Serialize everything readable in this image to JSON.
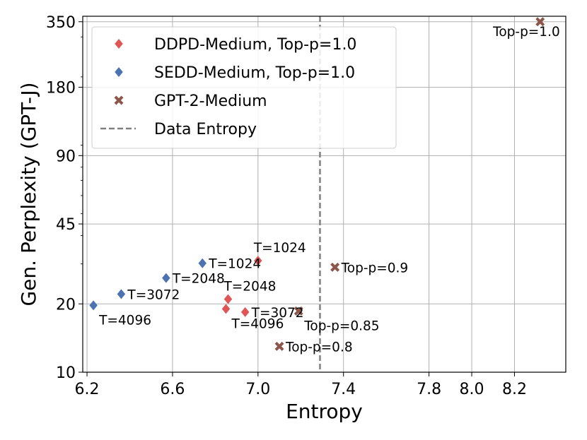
{
  "chart_data": {
    "type": "scatter",
    "xlabel": "Entropy",
    "ylabel": "Gen. Perplexity (GPT-J)",
    "xlim": [
      6.18,
      8.44
    ],
    "ylim": [
      10,
      370
    ],
    "y_scale": "log",
    "x_ticks": [
      {
        "value": 6.2,
        "label": "6.2"
      },
      {
        "value": 6.6,
        "label": "6.6"
      },
      {
        "value": 7.0,
        "label": "7.0"
      },
      {
        "value": 7.4,
        "label": "7.4"
      },
      {
        "value": 7.8,
        "label": "7.8"
      },
      {
        "value": 8.0,
        "label": "8.0"
      },
      {
        "value": 8.2,
        "label": "8.2"
      }
    ],
    "y_ticks": [
      {
        "value": 10,
        "label": "10"
      },
      {
        "value": 20,
        "label": "20"
      },
      {
        "value": 45,
        "label": "45"
      },
      {
        "value": 90,
        "label": "90"
      },
      {
        "value": 180,
        "label": "180"
      },
      {
        "value": 350,
        "label": "350"
      }
    ],
    "grid": true,
    "legend_position": "top-left",
    "reference_line": {
      "name": "Data Entropy",
      "x": 7.29,
      "style": "dashed",
      "color": "#808080"
    },
    "series": [
      {
        "name": "DDPD-Medium, Top-p=1.0",
        "marker": "diamond",
        "color": "#e05555",
        "points": [
          {
            "x": 7.0,
            "y": 31,
            "label": "T=1024",
            "label_pos": "above"
          },
          {
            "x": 6.86,
            "y": 21,
            "label": "T=2048",
            "label_pos": "above"
          },
          {
            "x": 6.94,
            "y": 18.4,
            "label": "T=3072",
            "label_pos": "right"
          },
          {
            "x": 6.85,
            "y": 19,
            "label": "T=4096",
            "label_pos": "below-right"
          }
        ]
      },
      {
        "name": "SEDD-Medium, Top-p=1.0",
        "marker": "diamond",
        "color": "#4c72b0",
        "points": [
          {
            "x": 6.74,
            "y": 30.2,
            "label": "T=1024",
            "label_pos": "right"
          },
          {
            "x": 6.57,
            "y": 26,
            "label": "T=2048",
            "label_pos": "right"
          },
          {
            "x": 6.36,
            "y": 22.1,
            "label": "T=3072",
            "label_pos": "right"
          },
          {
            "x": 6.23,
            "y": 19.7,
            "label": "T=4096",
            "label_pos": "below-right"
          }
        ]
      },
      {
        "name": "GPT-2-Medium",
        "marker": "x",
        "color": "#8c564b",
        "points": [
          {
            "x": 8.32,
            "y": 350,
            "label": "Top-p=1.0",
            "label_pos": "below-left"
          },
          {
            "x": 7.36,
            "y": 29,
            "label": "Top-p=0.9",
            "label_pos": "right"
          },
          {
            "x": 7.19,
            "y": 18.6,
            "label": "Top-p=0.85",
            "label_pos": "below-right"
          },
          {
            "x": 7.1,
            "y": 13,
            "label": "Top-p=0.8",
            "label_pos": "right"
          }
        ]
      }
    ]
  }
}
